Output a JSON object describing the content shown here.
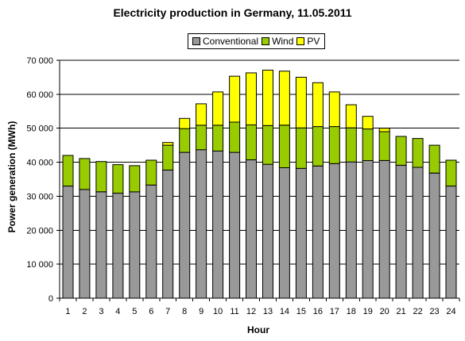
{
  "chart_data": {
    "type": "bar",
    "stacked": true,
    "title": "Electricity production in Germany, 11.05.2011",
    "xlabel": "Hour",
    "ylabel": "Power generation (MWh)",
    "ylim": [
      0,
      70000
    ],
    "yticks": [
      0,
      10000,
      20000,
      30000,
      40000,
      50000,
      60000,
      70000
    ],
    "ytick_labels": [
      "0",
      "10 000",
      "20 000",
      "30 000",
      "40 000",
      "50 000",
      "60 000",
      "70 000"
    ],
    "grid": true,
    "legend_position": "top-center",
    "categories": [
      "1",
      "2",
      "3",
      "4",
      "5",
      "6",
      "7",
      "8",
      "9",
      "10",
      "11",
      "12",
      "13",
      "14",
      "15",
      "16",
      "17",
      "18",
      "19",
      "20",
      "21",
      "22",
      "23",
      "24"
    ],
    "series": [
      {
        "name": "Conventional",
        "color": "#999999",
        "values": [
          33000,
          32000,
          31300,
          30900,
          31300,
          33300,
          37700,
          42900,
          43700,
          43300,
          42900,
          40700,
          39400,
          38400,
          38200,
          38900,
          39600,
          40100,
          40500,
          40500,
          39100,
          38500,
          36800,
          33000
        ]
      },
      {
        "name": "Wind",
        "color": "#99cc00",
        "values": [
          9000,
          9100,
          8900,
          8400,
          7700,
          7300,
          7300,
          7000,
          7200,
          7600,
          8900,
          10300,
          11400,
          12500,
          11900,
          11600,
          10900,
          10000,
          9300,
          8500,
          8500,
          8500,
          8200,
          7600
        ]
      },
      {
        "name": "PV",
        "color": "#ffff00",
        "values": [
          0,
          0,
          0,
          0,
          0,
          0,
          800,
          3000,
          6300,
          9800,
          13500,
          15300,
          16300,
          15900,
          14900,
          12900,
          10200,
          6800,
          3700,
          1000,
          0,
          0,
          0,
          0
        ]
      }
    ]
  }
}
